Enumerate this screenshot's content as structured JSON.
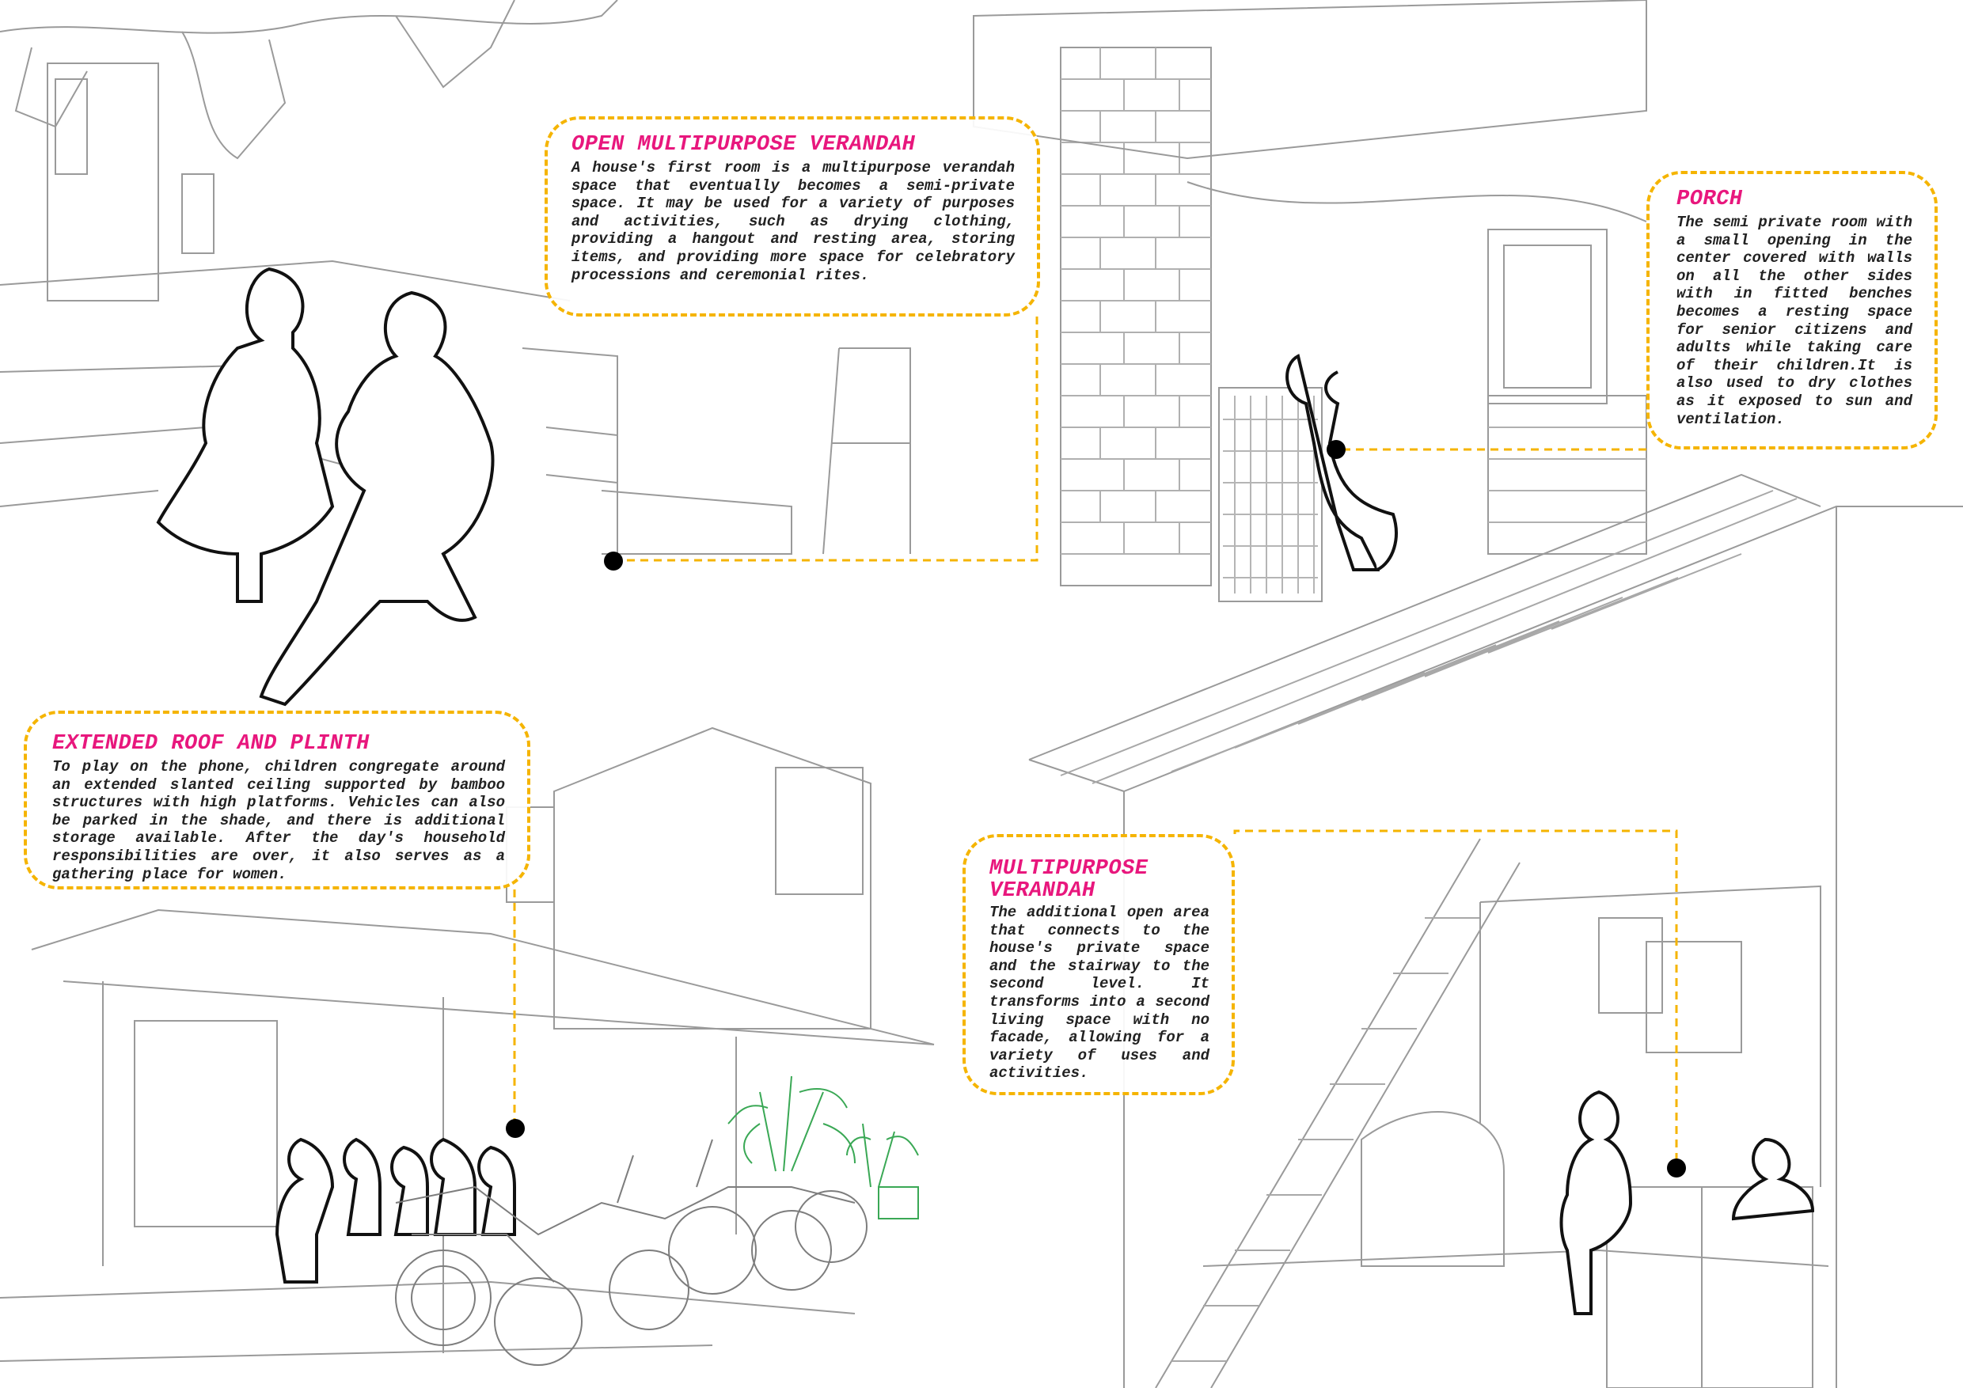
{
  "colors": {
    "title": "#e8177d",
    "body_text": "#222222",
    "dashed_border": "#f5b400",
    "line_art": "#9a9a9a",
    "figure_outline": "#111111",
    "plant": "#3aa855",
    "marker": "#000000"
  },
  "annotations": [
    {
      "id": "open-multipurpose-verandah",
      "title": "OPEN MULTIPURPOSE VERANDAH",
      "body": "A house's first room is a multipurpose verandah space that eventually becomes a semi-private space. It may be used for a variety of purposes and activities, such as drying clothing, providing a hangout and resting area, storing items, and providing more space for celebratory processions and ceremonial rites."
    },
    {
      "id": "porch",
      "title": "PORCH",
      "body": "The semi private room with a small opening in the center covered with walls on all the other sides with in fitted benches becomes a resting space for senior citizens and adults while taking care of their children.It is also used to dry clothes as it exposed to sun and ventilation."
    },
    {
      "id": "extended-roof-and-plinth",
      "title": "EXTENDED ROOF AND PLINTH",
      "body": "To play on the phone, children congregate around an extended slanted ceiling supported by bamboo structures with high platforms. Vehicles can also be parked in the shade, and there is additional storage available. After the day's household responsibilities are over, it also serves as a gathering place for women."
    },
    {
      "id": "multipurpose-verandah",
      "title": "MULTIPURPOSE VERANDAH",
      "body": "The additional open area that connects to the house's private space and the stairway to the second level. It transforms into a second living space with no facade, allowing for a variety of uses and activities."
    }
  ]
}
